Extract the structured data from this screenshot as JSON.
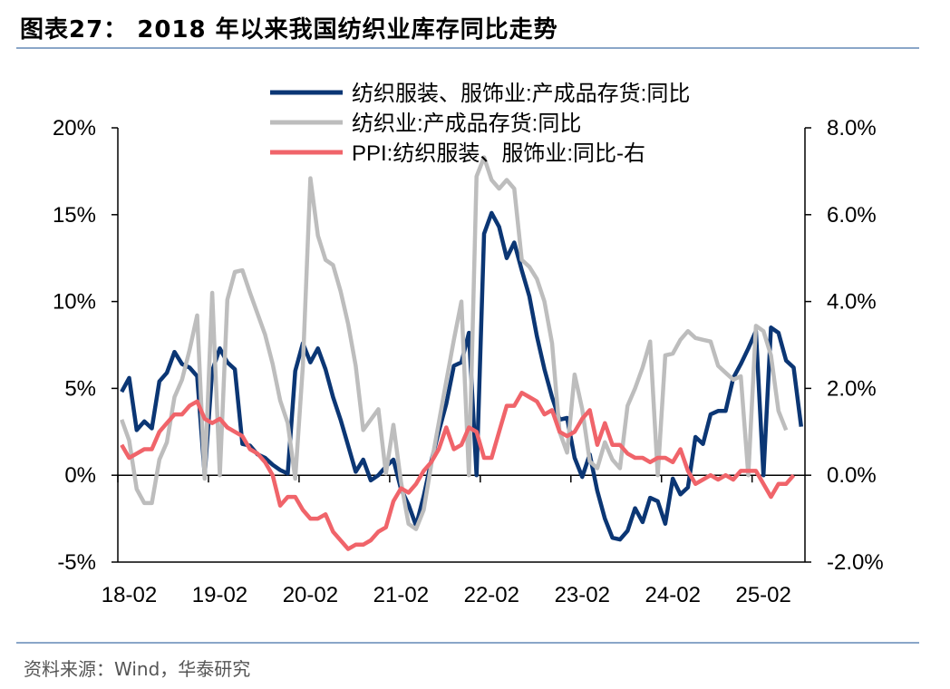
{
  "header": {
    "title": "图表27：  2018 年以来我国纺织业库存同比走势"
  },
  "footer": {
    "source": "资料来源：Wind，华泰研究"
  },
  "chart_data": {
    "type": "line",
    "x_tick_labels": [
      "18-02",
      "19-02",
      "20-02",
      "21-02",
      "22-02",
      "23-02",
      "24-02",
      "25-02"
    ],
    "x_start": "2018-01",
    "left_axis": {
      "ylim": [
        -5,
        20
      ],
      "ticks": [
        -5,
        0,
        5,
        10,
        15,
        20
      ],
      "tick_labels": [
        "-5%",
        "0%",
        "5%",
        "10%",
        "15%",
        "20%"
      ]
    },
    "right_axis": {
      "ylim": [
        -2,
        8
      ],
      "ticks": [
        -2,
        0,
        2,
        4,
        6,
        8
      ],
      "tick_labels": [
        "-2.0%",
        "0.0%",
        "2.0%",
        "4.0%",
        "6.0%",
        "8.0%"
      ]
    },
    "legend_position": "top",
    "series": [
      {
        "name": "纺织服装、服饰业:产成品存货:同比",
        "axis": "left",
        "color": "#0b3674",
        "values": [
          4.8,
          5.6,
          2.6,
          3.1,
          2.7,
          5.4,
          5.9,
          7.1,
          6.4,
          6.2,
          5.7,
          0.0,
          6.0,
          7.3,
          6.5,
          6.1,
          1.8,
          1.7,
          1.2,
          1.0,
          0.6,
          0.3,
          0.1,
          6.0,
          7.6,
          6.5,
          7.3,
          6.1,
          4.5,
          3.2,
          1.7,
          0.2,
          0.9,
          -0.3,
          0.0,
          0.5,
          0.9,
          -0.8,
          -1.7,
          -2.9,
          -1.2,
          0.8,
          2.5,
          4.1,
          6.3,
          6.5,
          8.2,
          0.0,
          13.9,
          15.1,
          14.3,
          12.5,
          13.4,
          11.8,
          10.3,
          8.0,
          6.1,
          4.5,
          3.2,
          3.3,
          1.0,
          -0.1,
          1.2,
          -0.9,
          -2.5,
          -3.6,
          -3.7,
          -3.2,
          -1.9,
          -2.7,
          -1.3,
          -1.5,
          -2.8,
          -0.2,
          -1.1,
          -0.7,
          2.2,
          1.8,
          3.5,
          3.7,
          3.7,
          5.6,
          6.4,
          7.3,
          8.3,
          0.0,
          8.5,
          8.2,
          6.6,
          6.2,
          2.8
        ]
      },
      {
        "name": "纺织业:产成品存货:同比",
        "axis": "left",
        "color": "#bdbdbd",
        "values": [
          3.2,
          2.0,
          -0.8,
          -1.6,
          -1.6,
          0.9,
          1.9,
          4.5,
          5.5,
          7.2,
          9.2,
          -0.2,
          10.5,
          0.0,
          10.1,
          11.7,
          11.8,
          10.5,
          9.3,
          8.1,
          6.4,
          4.3,
          3.0,
          -0.2,
          6.3,
          17.1,
          13.8,
          12.4,
          12.1,
          10.6,
          8.7,
          6.3,
          2.6,
          3.2,
          3.8,
          0.1,
          2.9,
          -0.4,
          -2.8,
          -3.1,
          -2.0,
          0.6,
          3.0,
          5.4,
          7.8,
          10.0,
          0.0,
          17.2,
          18.3,
          17.0,
          16.5,
          17.0,
          16.5,
          12.4,
          12.0,
          11.3,
          10.0,
          7.6,
          2.5,
          1.3,
          5.8,
          3.8,
          0.8,
          0.4,
          1.9,
          0.9,
          0.4,
          4.0,
          5.0,
          6.2,
          7.7,
          0.0,
          6.9,
          7.0,
          7.8,
          8.3,
          7.9,
          7.8,
          7.7,
          6.3,
          5.9,
          5.5,
          5.7,
          0.0,
          8.6,
          8.3,
          6.9,
          3.7,
          2.6
        ]
      },
      {
        "name": "PPI:纺织服装、服饰业:同比-右",
        "axis": "right",
        "color": "#f0646a",
        "values": [
          0.7,
          0.4,
          0.5,
          0.6,
          0.6,
          1.0,
          1.2,
          1.4,
          1.4,
          1.6,
          1.7,
          1.3,
          1.2,
          1.3,
          1.1,
          1.0,
          0.9,
          0.6,
          0.5,
          0.3,
          0.0,
          -0.7,
          -0.5,
          -0.5,
          -0.8,
          -1.0,
          -1.0,
          -0.9,
          -1.3,
          -1.5,
          -1.7,
          -1.6,
          -1.6,
          -1.5,
          -1.3,
          -1.2,
          -0.6,
          -0.3,
          -0.4,
          -0.2,
          0.1,
          0.3,
          0.6,
          1.1,
          0.6,
          0.7,
          1.1,
          1.0,
          0.4,
          0.4,
          1.0,
          1.6,
          1.6,
          1.9,
          1.8,
          1.7,
          1.4,
          1.5,
          1.0,
          0.9,
          1.0,
          1.3,
          1.5,
          0.7,
          1.2,
          0.7,
          0.7,
          0.5,
          0.4,
          0.4,
          0.3,
          0.4,
          0.4,
          0.3,
          0.6,
          0.1,
          -0.2,
          -0.1,
          0.0,
          -0.1,
          0.0,
          -0.1,
          0.1,
          0.1,
          0.1,
          -0.2,
          -0.5,
          -0.2,
          -0.2,
          0.0
        ]
      }
    ]
  }
}
